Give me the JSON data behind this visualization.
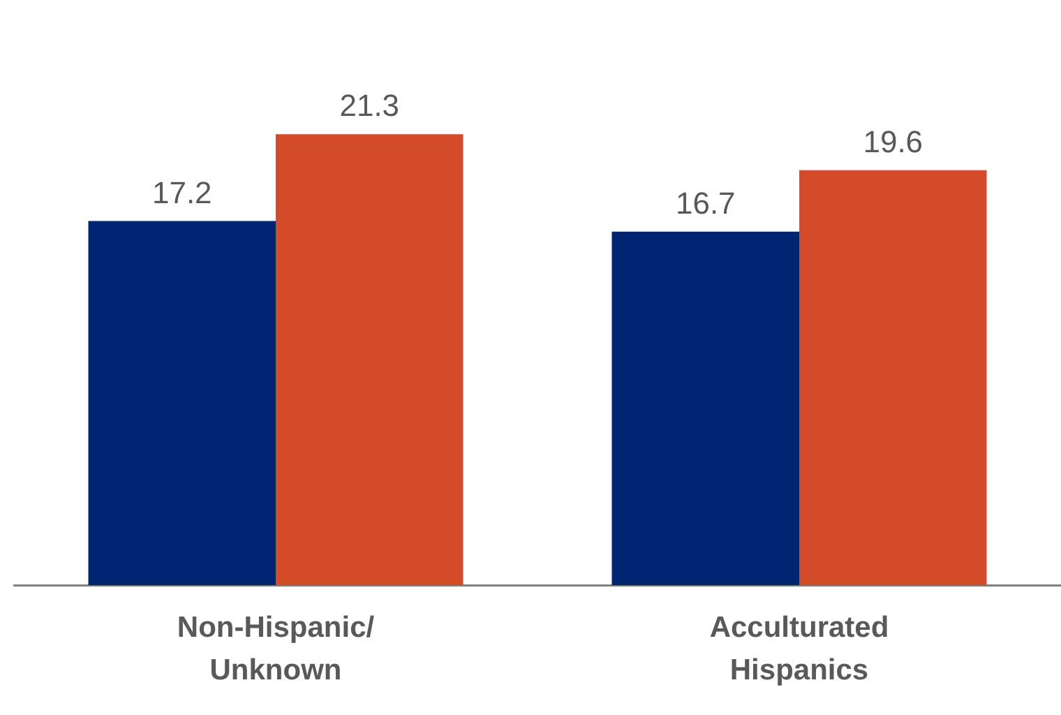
{
  "chart_data": {
    "type": "bar",
    "categories": [
      "Non-Hispanic/ Unknown",
      "Acculturated Hispanics"
    ],
    "series": [
      {
        "color": "#002673",
        "values": [
          17.2,
          16.7
        ]
      },
      {
        "color": "#d44b2a",
        "values": [
          21.3,
          19.6
        ]
      }
    ],
    "data_labels": true,
    "grid": false,
    "legend": false,
    "tick_labels": "x"
  }
}
